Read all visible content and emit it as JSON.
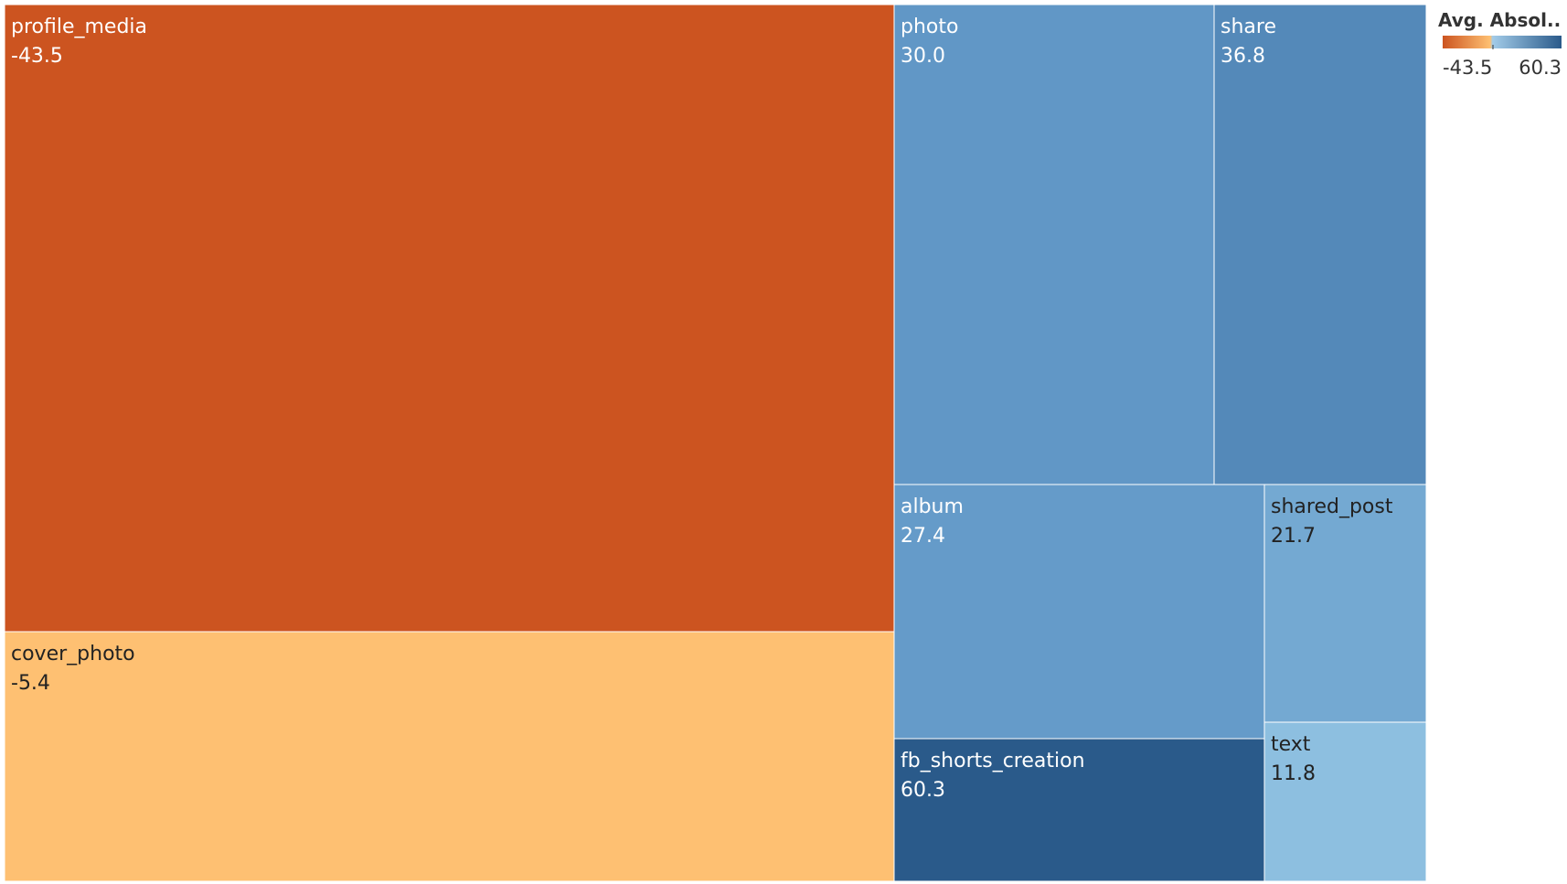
{
  "chart_data": {
    "type": "treemap",
    "color_metric_label": "Avg. Absol..",
    "color_range": [
      -43.5,
      60.3
    ],
    "legend_min_label": "-43.5",
    "legend_max_label": "60.3",
    "legend_placement": "top-right",
    "colors": {
      "negative_end": "#cc5420",
      "negative_light": "#fec072",
      "positive_light": "#a2cbe8",
      "positive_end": "#2a5a8a"
    },
    "tiles": [
      {
        "name": "profile_media",
        "value_label": "-43.5",
        "value": -43.5,
        "color": "#cc5420",
        "text_color": "#ffffff"
      },
      {
        "name": "cover_photo",
        "value_label": "-5.4",
        "value": -5.4,
        "color": "#fec072",
        "text_color": "#222222"
      },
      {
        "name": "photo",
        "value_label": "30.0",
        "value": 30.0,
        "color": "#6197c6",
        "text_color": "#ffffff"
      },
      {
        "name": "share",
        "value_label": "36.8",
        "value": 36.8,
        "color": "#5489b9",
        "text_color": "#ffffff"
      },
      {
        "name": "album",
        "value_label": "27.4",
        "value": 27.4,
        "color": "#659bc9",
        "text_color": "#ffffff"
      },
      {
        "name": "shared_post",
        "value_label": "21.7",
        "value": 21.7,
        "color": "#74a9d2",
        "text_color": "#222222"
      },
      {
        "name": "fb_shorts_creation",
        "value_label": "60.3",
        "value": 60.3,
        "color": "#2a5a8a",
        "text_color": "#ffffff"
      },
      {
        "name": "text",
        "value_label": "11.8",
        "value": 11.8,
        "color": "#8dbfe0",
        "text_color": "#222222"
      }
    ]
  }
}
